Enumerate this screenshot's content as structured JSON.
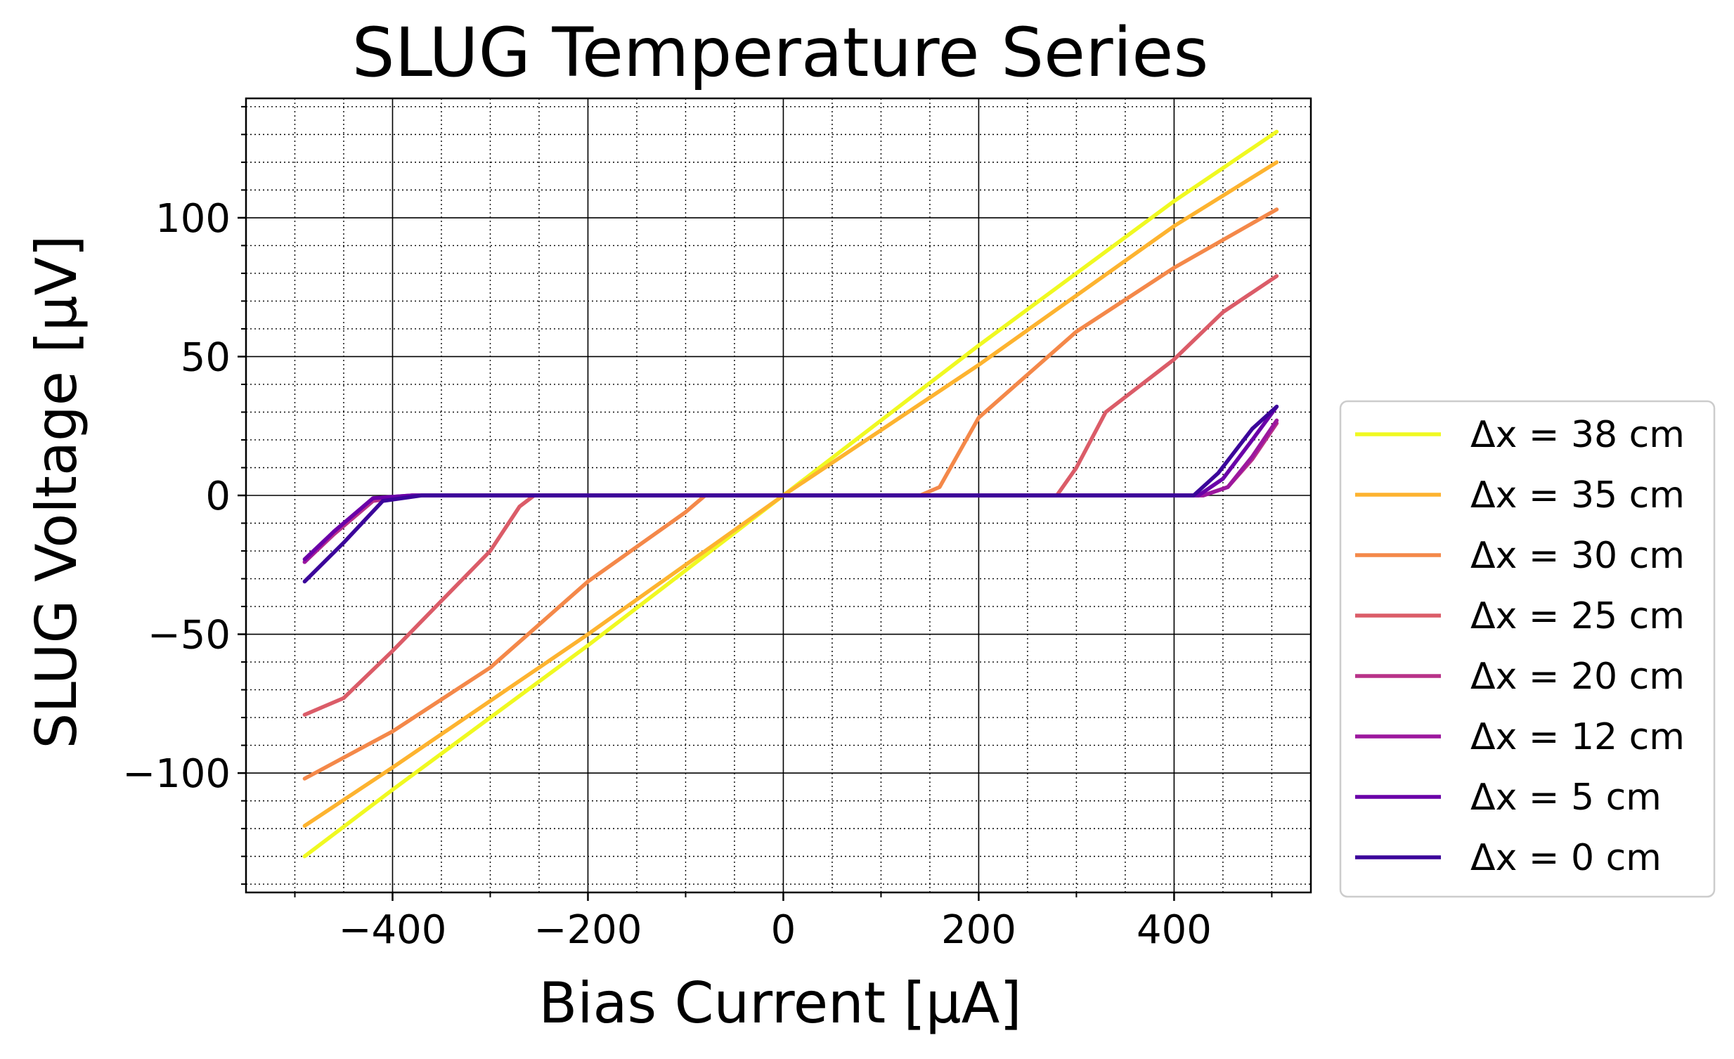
{
  "chart_data": {
    "type": "line",
    "title": "SLUG Temperature Series",
    "xlabel": "Bias Current [μA]",
    "ylabel": "SLUG Voltage [μV]",
    "xlim": [
      -550,
      540
    ],
    "ylim": [
      -143,
      143
    ],
    "x_ticks": [
      -400,
      -200,
      0,
      200,
      400
    ],
    "x_tick_labels": [
      "−400",
      "−200",
      "0",
      "200",
      "400"
    ],
    "y_ticks": [
      -100,
      -50,
      0,
      50,
      100
    ],
    "y_tick_labels": [
      "−100",
      "−50",
      "0",
      "50",
      "100"
    ],
    "grid": "major solid, minor dotted",
    "legend_position": "outside right",
    "series": [
      {
        "name": "Δx = 38 cm",
        "color": "#f0f921",
        "points": [
          [
            -490,
            -130
          ],
          [
            -400,
            -106
          ],
          [
            -200,
            -54
          ],
          [
            0,
            0
          ],
          [
            200,
            54
          ],
          [
            400,
            106
          ],
          [
            505,
            131
          ]
        ]
      },
      {
        "name": "Δx = 35 cm",
        "color": "#fdb32f",
        "points": [
          [
            -490,
            -119
          ],
          [
            -400,
            -98
          ],
          [
            -200,
            -50
          ],
          [
            0,
            0
          ],
          [
            200,
            47
          ],
          [
            400,
            97
          ],
          [
            505,
            120
          ]
        ]
      },
      {
        "name": "Δx = 30 cm",
        "color": "#f48849",
        "points": [
          [
            -490,
            -102
          ],
          [
            -400,
            -85
          ],
          [
            -300,
            -62
          ],
          [
            -200,
            -31
          ],
          [
            -100,
            -6
          ],
          [
            -80,
            0
          ],
          [
            140,
            0
          ],
          [
            160,
            3
          ],
          [
            200,
            28
          ],
          [
            300,
            59
          ],
          [
            400,
            82
          ],
          [
            505,
            103
          ]
        ]
      },
      {
        "name": "Δx = 25 cm",
        "color": "#db5c68",
        "points": [
          [
            -490,
            -79
          ],
          [
            -450,
            -73
          ],
          [
            -400,
            -56
          ],
          [
            -350,
            -38
          ],
          [
            -300,
            -20
          ],
          [
            -270,
            -4
          ],
          [
            -255,
            0
          ],
          [
            280,
            0
          ],
          [
            300,
            10
          ],
          [
            330,
            30
          ],
          [
            400,
            49
          ],
          [
            450,
            66
          ],
          [
            505,
            79
          ]
        ]
      },
      {
        "name": "Δx = 20 cm",
        "color": "#b83289",
        "points": [
          [
            -490,
            -24
          ],
          [
            -460,
            -14
          ],
          [
            -420,
            -2
          ],
          [
            -380,
            0
          ],
          [
            430,
            0
          ],
          [
            455,
            3
          ],
          [
            480,
            13
          ],
          [
            505,
            26
          ]
        ]
      },
      {
        "name": "Δx = 12 cm",
        "color": "#9c179e",
        "points": [
          [
            -490,
            -24
          ],
          [
            -460,
            -13
          ],
          [
            -420,
            -1
          ],
          [
            -380,
            0
          ],
          [
            430,
            0
          ],
          [
            455,
            3
          ],
          [
            480,
            14
          ],
          [
            505,
            27
          ]
        ]
      },
      {
        "name": "Δx = 5 cm",
        "color": "#6a00a8",
        "points": [
          [
            -490,
            -23
          ],
          [
            -460,
            -13
          ],
          [
            -420,
            -1
          ],
          [
            -380,
            0
          ],
          [
            425,
            0
          ],
          [
            450,
            6
          ],
          [
            480,
            20
          ],
          [
            505,
            32
          ]
        ]
      },
      {
        "name": "Δx = 0 cm",
        "color": "#3b049a",
        "points": [
          [
            -490,
            -31
          ],
          [
            -450,
            -17
          ],
          [
            -410,
            -2
          ],
          [
            -370,
            0
          ],
          [
            420,
            0
          ],
          [
            445,
            8
          ],
          [
            480,
            24
          ],
          [
            505,
            32
          ]
        ]
      }
    ]
  }
}
